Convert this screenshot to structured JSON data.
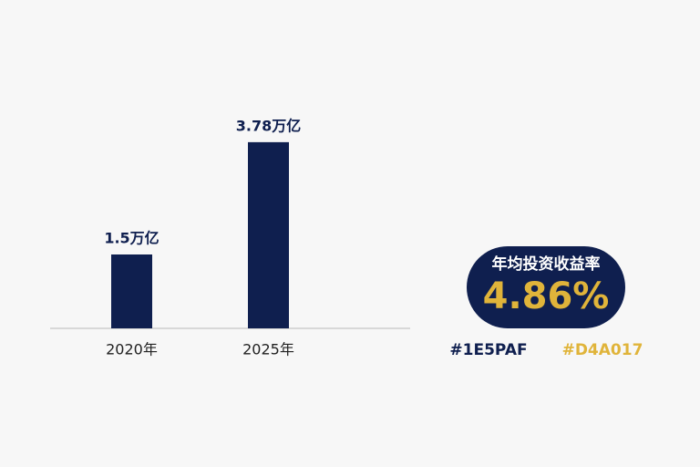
{
  "chart_data": {
    "type": "bar",
    "categories": [
      "2020年",
      "2025年"
    ],
    "values": [
      1.5,
      3.78
    ],
    "value_labels": [
      "1.5万亿",
      "3.78万亿"
    ],
    "color": "#0f1f4f",
    "badge": {
      "title": "年均投资收益率",
      "value": "4.86%"
    },
    "color_notes": [
      "#1E5PAF",
      "#D4A017"
    ]
  }
}
